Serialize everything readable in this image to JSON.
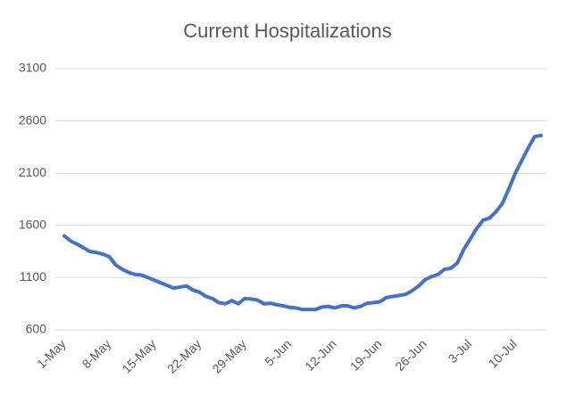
{
  "chart_data": {
    "type": "line",
    "title": "Current Hospitalizations",
    "categories": [
      "1-May",
      null,
      null,
      null,
      null,
      null,
      null,
      "8-May",
      null,
      null,
      null,
      null,
      null,
      null,
      "15-May",
      null,
      null,
      null,
      null,
      null,
      null,
      "22-May",
      null,
      null,
      null,
      null,
      null,
      null,
      "29-May",
      null,
      null,
      null,
      null,
      null,
      null,
      "5-Jun",
      null,
      null,
      null,
      null,
      null,
      null,
      "12-Jun",
      null,
      null,
      null,
      null,
      null,
      null,
      "19-Jun",
      null,
      null,
      null,
      null,
      null,
      null,
      "26-Jun",
      null,
      null,
      null,
      null,
      null,
      null,
      "3-Jul",
      null,
      null,
      null,
      null,
      null,
      null,
      "10-Jul",
      null,
      null,
      null,
      null
    ],
    "series": [
      {
        "name": "Current Hospitalizations",
        "color": "#4472c4",
        "values": [
          1500,
          1450,
          1420,
          1385,
          1350,
          1340,
          1325,
          1300,
          1220,
          1180,
          1150,
          1130,
          1125,
          1100,
          1075,
          1050,
          1025,
          1000,
          1010,
          1020,
          980,
          960,
          920,
          900,
          860,
          850,
          880,
          850,
          900,
          895,
          885,
          850,
          855,
          840,
          830,
          815,
          810,
          795,
          795,
          795,
          820,
          825,
          810,
          830,
          830,
          810,
          825,
          855,
          860,
          870,
          910,
          920,
          930,
          940,
          975,
          1020,
          1080,
          1110,
          1130,
          1180,
          1190,
          1240,
          1370,
          1470,
          1570,
          1650,
          1670,
          1730,
          1810,
          1950,
          2100,
          2220,
          2340,
          2450,
          2460
        ]
      }
    ],
    "ylim": [
      600,
      3100
    ],
    "yticks": [
      600,
      1100,
      1600,
      2100,
      2600,
      3100
    ],
    "grid": true
  }
}
